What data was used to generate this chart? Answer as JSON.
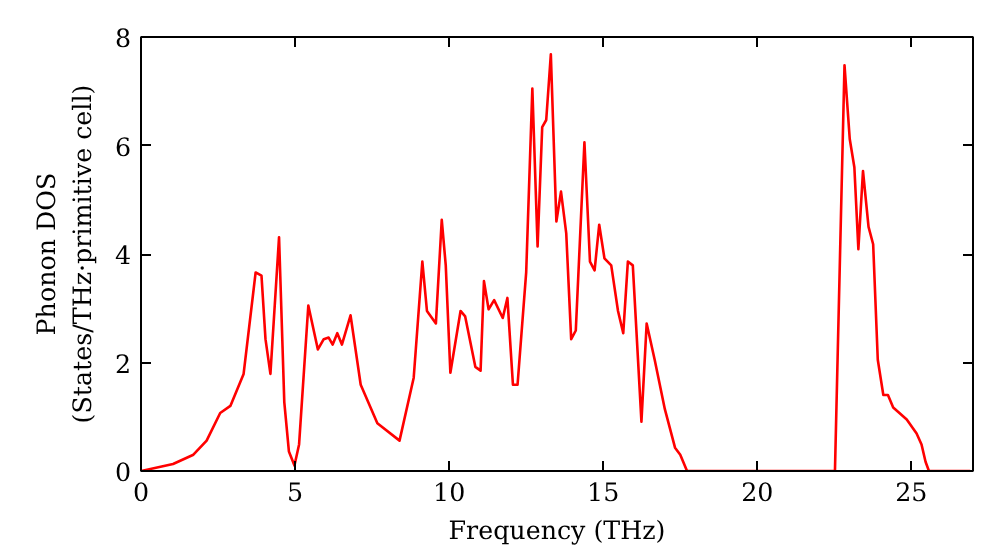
{
  "chart_data": {
    "type": "line",
    "xlabel": "Frequency (THz)",
    "ylabel": "Phonon DOS\n(States/THz·primitive cell)",
    "xlim": [
      0,
      27
    ],
    "ylim": [
      0,
      8
    ],
    "xticks": [
      0,
      5,
      10,
      15,
      20,
      25
    ],
    "yticks": [
      0,
      2,
      4,
      6,
      8
    ],
    "grid": false,
    "marker": "none",
    "line_style": "solid",
    "series": [
      {
        "color": "#ff0000",
        "x": [
          0,
          1.04,
          1.7,
          2.13,
          2.57,
          2.9,
          3.33,
          3.72,
          3.91,
          4.04,
          4.2,
          4.48,
          4.65,
          4.8,
          4.98,
          5.13,
          5.43,
          5.74,
          5.93,
          6.09,
          6.22,
          6.37,
          6.52,
          6.8,
          7.13,
          7.67,
          8.39,
          8.85,
          9.13,
          9.28,
          9.57,
          9.76,
          9.89,
          10.04,
          10.37,
          10.52,
          10.85,
          11.02,
          11.13,
          11.28,
          11.46,
          11.74,
          11.89,
          12.07,
          12.22,
          12.5,
          12.7,
          12.87,
          13.02,
          13.15,
          13.3,
          13.48,
          13.63,
          13.8,
          13.96,
          14.11,
          14.39,
          14.57,
          14.72,
          14.87,
          15.04,
          15.26,
          15.48,
          15.65,
          15.8,
          15.96,
          16.24,
          16.41,
          16.67,
          17.0,
          17.33,
          17.5,
          17.72,
          22.52,
          22.83,
          23.0,
          23.15,
          23.28,
          23.43,
          23.61,
          23.76,
          23.91,
          24.09,
          24.24,
          24.41,
          24.85,
          25.17,
          25.33,
          25.46,
          25.57,
          26.91
        ],
        "values": [
          0,
          0.13,
          0.3,
          0.56,
          1.07,
          1.2,
          1.79,
          3.66,
          3.6,
          2.43,
          1.79,
          4.31,
          1.27,
          0.36,
          0.1,
          0.49,
          3.05,
          2.24,
          2.43,
          2.46,
          2.33,
          2.54,
          2.33,
          2.87,
          1.59,
          0.88,
          0.56,
          1.72,
          3.86,
          2.95,
          2.72,
          4.63,
          3.79,
          1.81,
          2.95,
          2.85,
          1.92,
          1.85,
          3.5,
          2.98,
          3.15,
          2.82,
          3.19,
          1.59,
          1.59,
          3.66,
          7.05,
          4.14,
          6.34,
          6.47,
          7.68,
          4.6,
          5.15,
          4.38,
          2.43,
          2.59,
          6.06,
          3.86,
          3.7,
          4.54,
          3.92,
          3.79,
          2.95,
          2.54,
          3.86,
          3.79,
          0.91,
          2.72,
          2.05,
          1.14,
          0.43,
          0.3,
          0,
          0,
          7.48,
          6.12,
          5.6,
          4.09,
          5.53,
          4.5,
          4.18,
          2.05,
          1.4,
          1.4,
          1.17,
          0.95,
          0.69,
          0.49,
          0.17,
          0,
          0
        ]
      }
    ]
  }
}
